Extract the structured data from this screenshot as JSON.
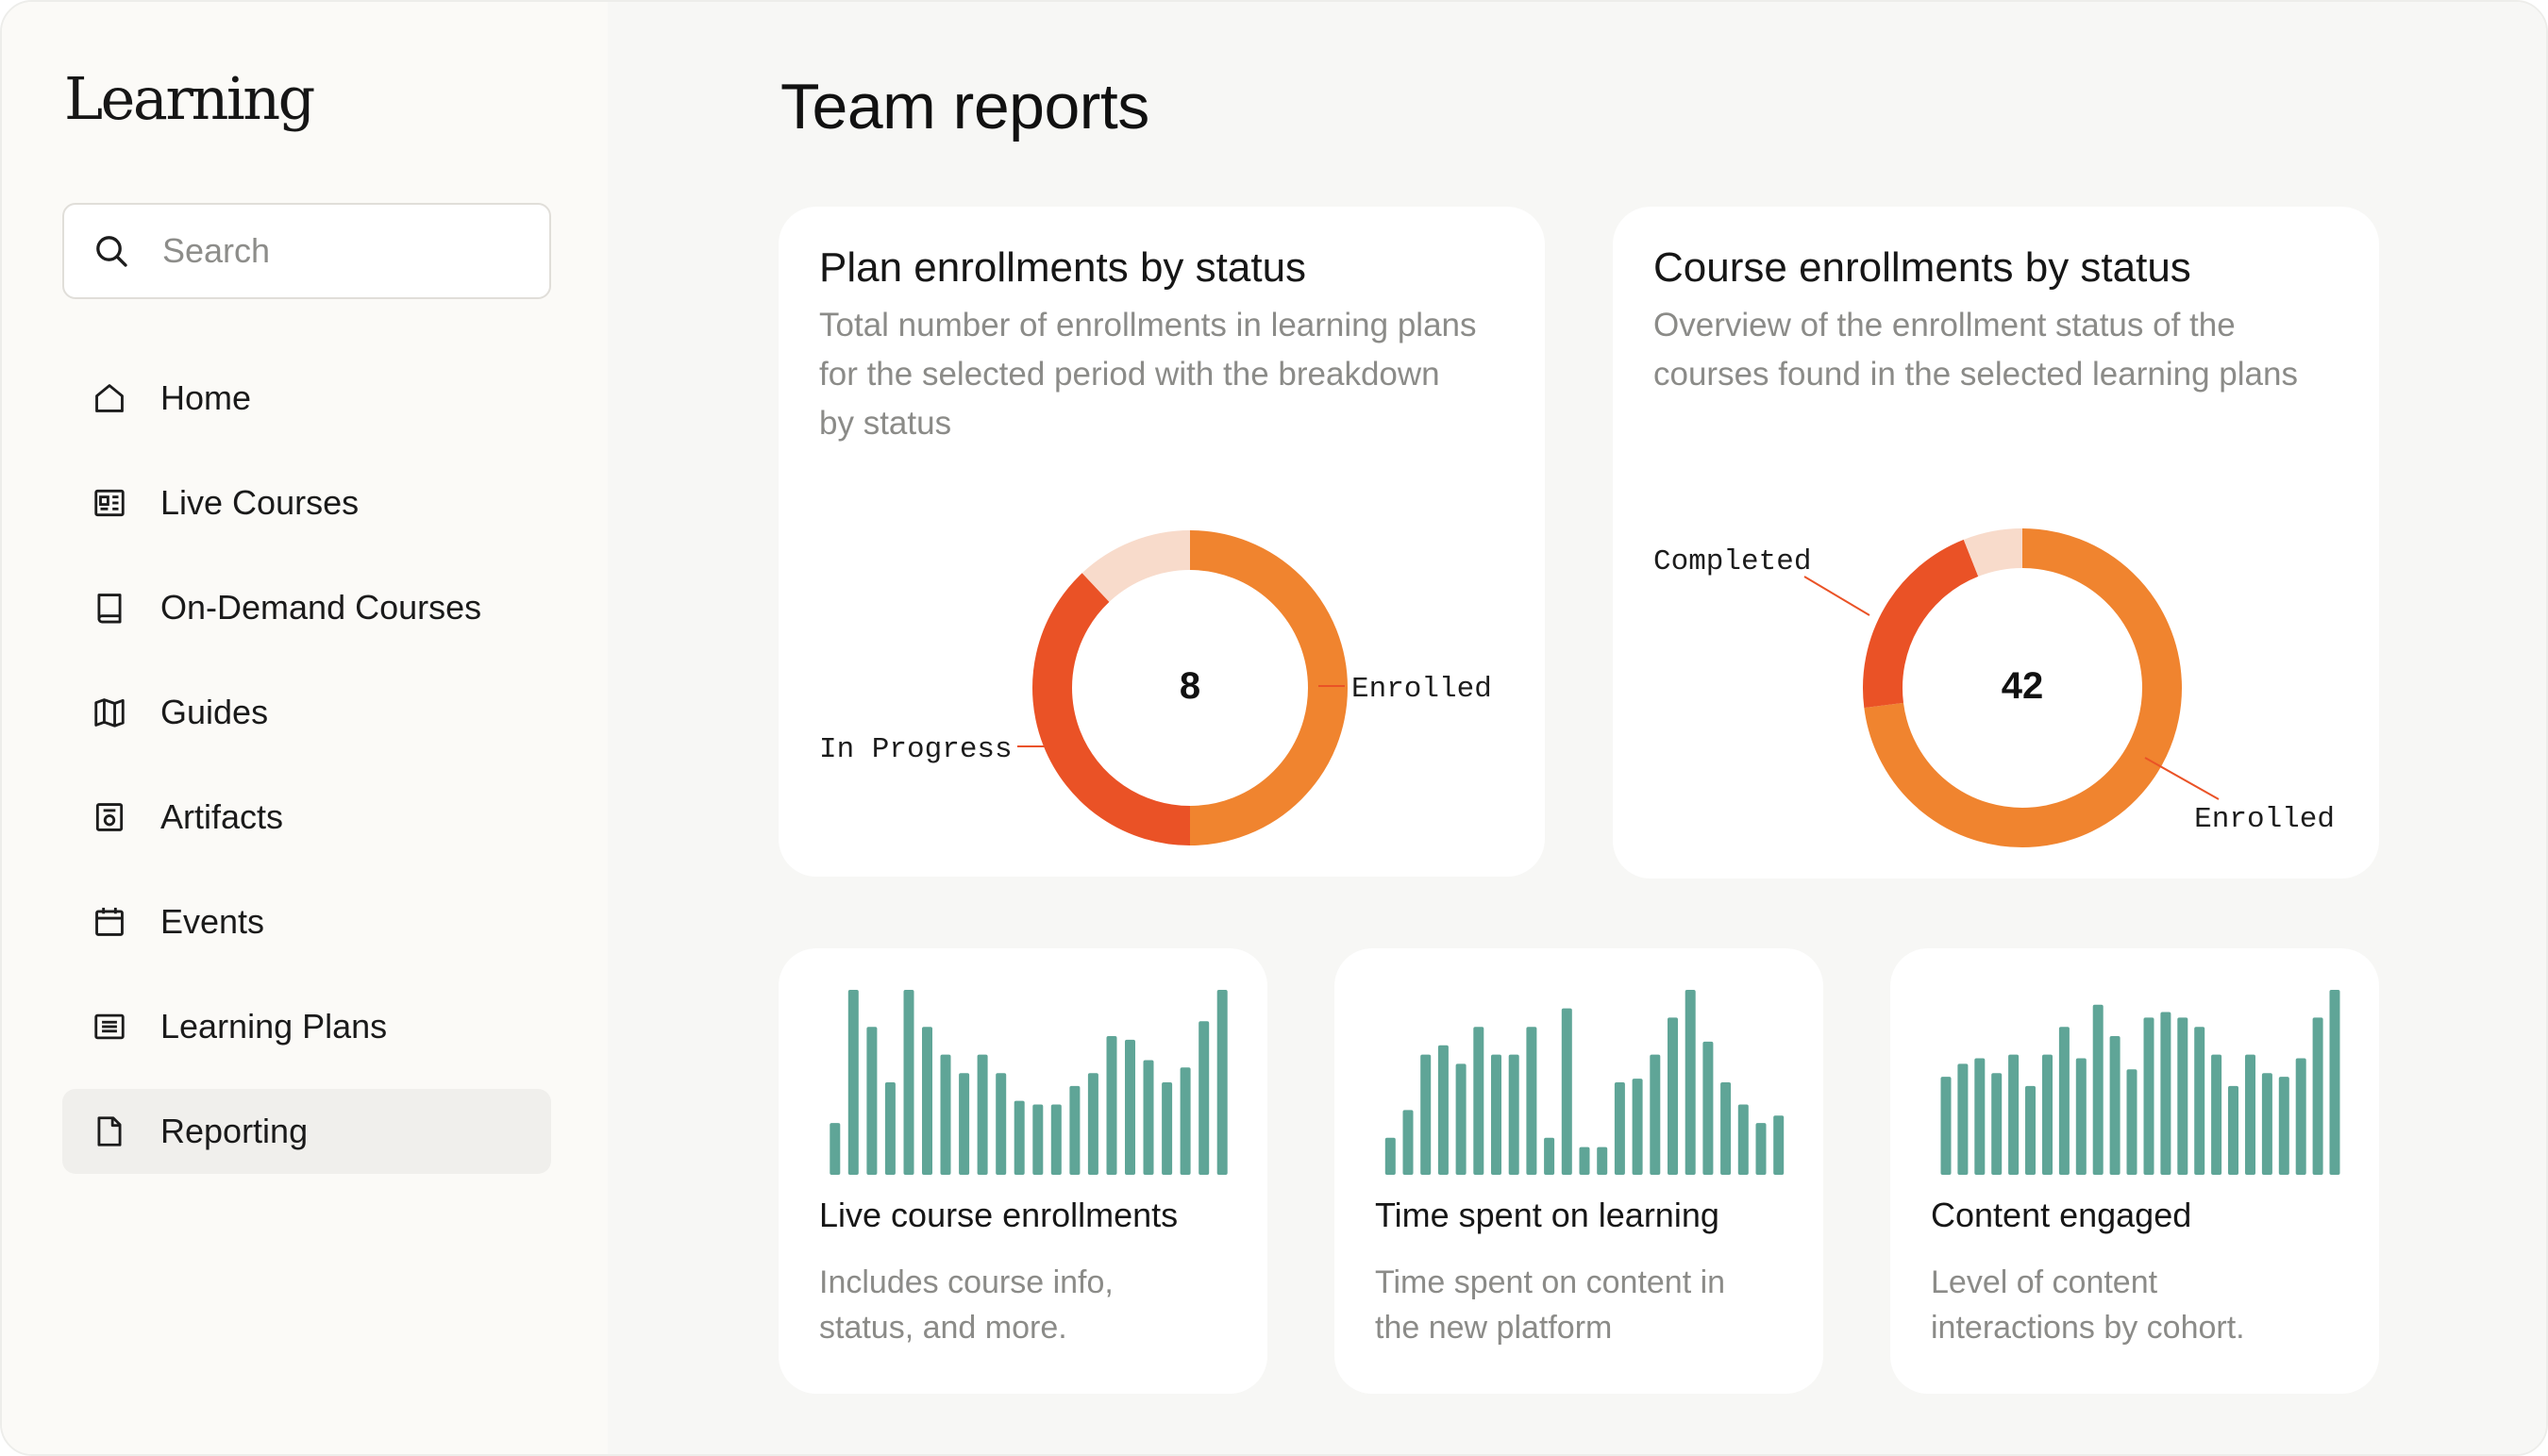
{
  "app": {
    "brand": "Learning"
  },
  "search": {
    "placeholder": "Search"
  },
  "nav": [
    {
      "label": "Home",
      "icon": "home-icon"
    },
    {
      "label": "Live Courses",
      "icon": "live-courses-icon"
    },
    {
      "label": "On-Demand Courses",
      "icon": "book-icon"
    },
    {
      "label": "Guides",
      "icon": "map-icon"
    },
    {
      "label": "Artifacts",
      "icon": "artifact-icon"
    },
    {
      "label": "Events",
      "icon": "calendar-icon"
    },
    {
      "label": "Learning Plans",
      "icon": "list-icon"
    },
    {
      "label": "Reporting",
      "icon": "document-icon",
      "active": true
    }
  ],
  "page": {
    "title": "Team reports"
  },
  "colors": {
    "enrolled": "#f0842f",
    "in_progress": "#ea5226",
    "other": "#f8dbcb",
    "bars": "#5fa597"
  },
  "cards": {
    "plan": {
      "title": "Plan enrollments by status",
      "description_lines": [
        "Total number of enrollments in learning plans",
        "for the selected period with the breakdown",
        "by status"
      ]
    },
    "course": {
      "title": "Course enrollments by status",
      "description_lines": [
        "Overview of the enrollment status of the",
        "courses found in the selected learning plans"
      ]
    },
    "live": {
      "title": "Live course enrollments",
      "description_lines": [
        "Includes course info,",
        "status, and more."
      ]
    },
    "time": {
      "title": "Time spent on learning",
      "description_lines": [
        "Time spent on content in",
        "the new platform"
      ]
    },
    "content": {
      "title": "Content engaged",
      "description_lines": [
        "Level of content",
        "interactions by cohort."
      ]
    }
  },
  "chart_data": [
    {
      "type": "pie",
      "variant": "donut",
      "center_label": "8",
      "labels": [
        "Enrolled",
        "In Progress",
        ""
      ],
      "values": [
        50,
        38,
        12
      ]
    },
    {
      "type": "pie",
      "variant": "donut",
      "center_label": "42",
      "labels": [
        "Enrolled",
        "Completed",
        ""
      ],
      "values": [
        73,
        21,
        6
      ]
    },
    {
      "type": "bar",
      "values": [
        28,
        100,
        80,
        50,
        100,
        80,
        65,
        55,
        65,
        55,
        40,
        38,
        38,
        48,
        55,
        75,
        73,
        62,
        50,
        58,
        83,
        100
      ]
    },
    {
      "type": "bar",
      "values": [
        20,
        35,
        65,
        70,
        60,
        80,
        65,
        65,
        80,
        20,
        90,
        15,
        15,
        50,
        52,
        65,
        85,
        100,
        72,
        50,
        38,
        28,
        32
      ]
    },
    {
      "type": "bar",
      "values": [
        53,
        60,
        63,
        55,
        65,
        48,
        65,
        80,
        63,
        92,
        75,
        57,
        85,
        88,
        85,
        80,
        65,
        48,
        65,
        55,
        53,
        63,
        85,
        100
      ]
    }
  ]
}
